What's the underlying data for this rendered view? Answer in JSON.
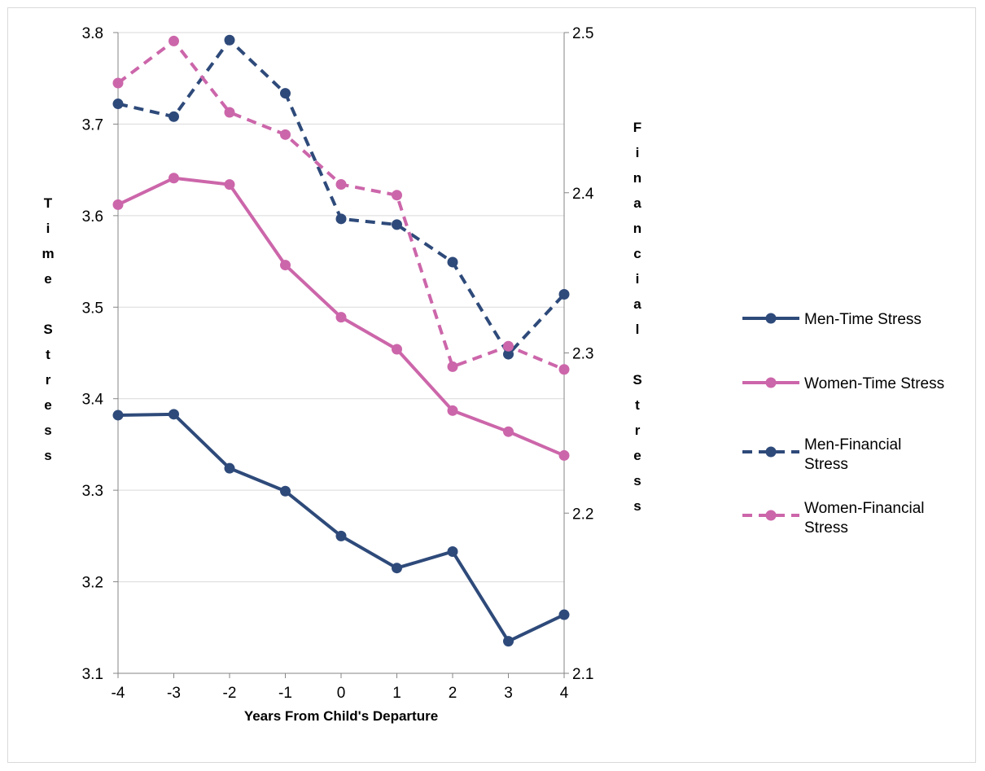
{
  "chart_data": {
    "type": "line",
    "title": "",
    "xlabel": "Years From Child's Departure",
    "ylabel_left": "Time Stress",
    "ylabel_right": "Financial Stress",
    "x": [
      -4,
      -3,
      -2,
      -1,
      0,
      1,
      2,
      3,
      4
    ],
    "x_tick_labels": [
      "-4",
      "-3",
      "-2",
      "-1",
      "0",
      "1",
      "2",
      "3",
      "4"
    ],
    "ylim_left": [
      3.1,
      3.8
    ],
    "ylim_right": [
      2.1,
      2.5
    ],
    "y_ticks_left": [
      "3.1",
      "3.2",
      "3.3",
      "3.4",
      "3.5",
      "3.6",
      "3.7",
      "3.8"
    ],
    "y_ticks_right": [
      "2.1",
      "2.2",
      "2.3",
      "2.4",
      "2.5"
    ],
    "grid": true,
    "legend_position": "right",
    "series": [
      {
        "name": "Men-Time Stress",
        "axis": "left",
        "style": "solid",
        "color": "#2e4a7a",
        "values": [
          3.382,
          3.383,
          3.324,
          3.299,
          3.25,
          3.215,
          3.233,
          3.135,
          3.164
        ]
      },
      {
        "name": "Women-Time Stress",
        "axis": "left",
        "style": "solid",
        "color": "#cc66aa",
        "values": [
          3.612,
          3.641,
          3.634,
          3.546,
          3.489,
          3.454,
          3.387,
          3.364,
          3.338
        ]
      },
      {
        "name": "Men-Financial Stress",
        "axis": "right",
        "style": "dashed",
        "color": "#2e4a7a",
        "values": [
          2.4555,
          2.4475,
          2.4953,
          2.4621,
          2.3837,
          2.3801,
          2.3567,
          2.2992,
          2.3366
        ]
      },
      {
        "name": "Women-Financial Stress",
        "axis": "right",
        "style": "dashed",
        "color": "#cc66aa",
        "values": [
          2.4685,
          2.4947,
          2.4502,
          2.4363,
          2.4052,
          2.3985,
          2.2914,
          2.3042,
          2.2897
        ]
      }
    ]
  }
}
